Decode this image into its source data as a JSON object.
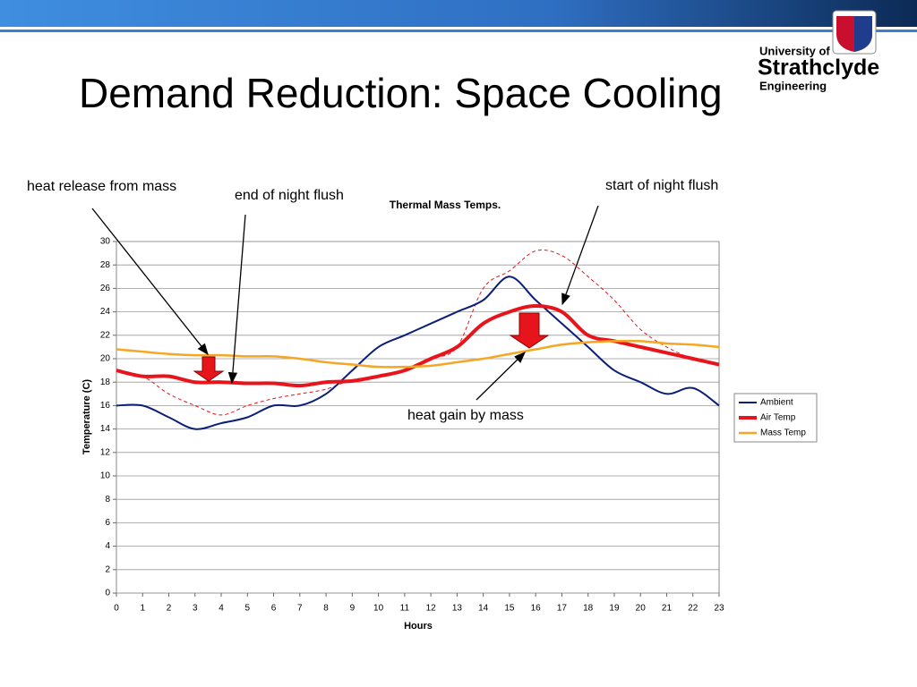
{
  "slide": {
    "title": "Demand Reduction: Space Cooling",
    "logo": [
      "University of",
      "Strathclyde",
      "Engineering"
    ]
  },
  "chart_data": {
    "type": "line",
    "title": "Thermal Mass Temps.",
    "xlabel": "Hours",
    "ylabel": "Temperature (C)",
    "x": [
      0,
      1,
      2,
      3,
      4,
      5,
      6,
      7,
      8,
      9,
      10,
      11,
      12,
      13,
      14,
      15,
      16,
      17,
      18,
      19,
      20,
      21,
      22,
      23
    ],
    "xlim": [
      0,
      23
    ],
    "ylim": [
      0,
      30
    ],
    "yticks": [
      0,
      2,
      4,
      6,
      8,
      10,
      12,
      14,
      16,
      18,
      20,
      22,
      24,
      26,
      28,
      30
    ],
    "grid": true,
    "series": [
      {
        "name": "Ambient",
        "color": "#0a1f7a",
        "width": 2,
        "values": [
          16,
          16,
          15,
          14,
          14.5,
          15,
          16,
          16,
          17,
          19,
          21,
          22,
          23,
          24,
          25,
          27,
          25,
          23,
          21,
          19,
          18,
          17,
          17.5,
          16
        ]
      },
      {
        "name": "Air Temp",
        "color": "#e8141c",
        "width": 4,
        "values": [
          19,
          18.5,
          18.5,
          18,
          18,
          17.9,
          17.9,
          17.7,
          18,
          18.1,
          18.5,
          19,
          20,
          21,
          23,
          24,
          24.5,
          24,
          22,
          21.5,
          21,
          20.5,
          20,
          19.5
        ]
      },
      {
        "name": "Mass Temp",
        "color": "#f5a623",
        "width": 2.5,
        "values": [
          20.8,
          20.6,
          20.4,
          20.3,
          20.3,
          20.2,
          20.2,
          20,
          19.7,
          19.5,
          19.3,
          19.3,
          19.4,
          19.7,
          20,
          20.4,
          20.8,
          21.2,
          21.4,
          21.5,
          21.5,
          21.3,
          21.2,
          21
        ]
      },
      {
        "color": "#e8141c",
        "width": 1,
        "dash": true,
        "values": [
          19,
          18.5,
          17,
          16,
          15.2,
          16,
          16.6,
          17,
          17.4,
          18.2,
          18.5,
          19,
          20,
          21,
          26,
          27.5,
          29.2,
          28.8,
          27,
          25,
          22.5,
          21,
          20,
          19.5
        ]
      }
    ],
    "annotations": [
      "heat release from mass",
      "end of night flush",
      "start of night flush",
      "heat gain by  mass"
    ]
  }
}
